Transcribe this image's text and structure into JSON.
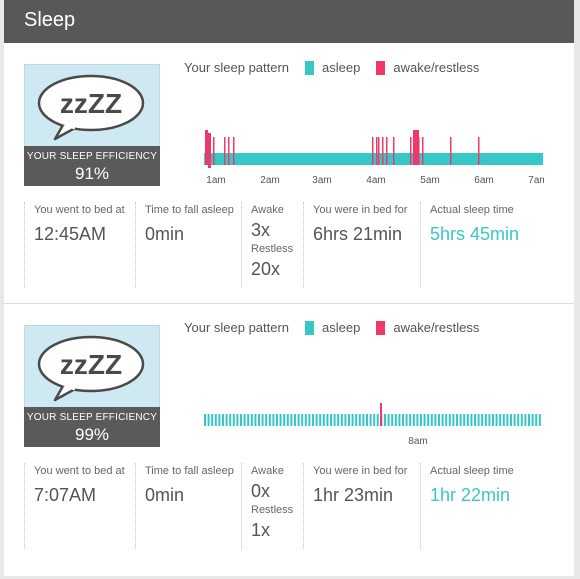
{
  "header": {
    "title": "Sleep"
  },
  "colors": {
    "asleep": "#36c8c8",
    "awake": "#f0386a",
    "header": "#585858",
    "card": "#cfe9f3"
  },
  "icon": "speech-bubble-zzz-icon",
  "nights": [
    {
      "bubble_text": "zzZZ",
      "efficiency_label": "YOUR SLEEP EFFICIENCY",
      "efficiency_value": "91%",
      "legend": {
        "title": "Your sleep pattern",
        "asleep": "asleep",
        "awake": "awake/restless"
      },
      "time_labels": [
        "1am",
        "2am",
        "3am",
        "4am",
        "5am",
        "6am",
        "7am"
      ],
      "stats": {
        "bed_label": "You went to bed at",
        "bed_value": "12:45AM",
        "fall_label": "Time to fall asleep",
        "fall_value": "0min",
        "awake_label": "Awake",
        "awake_value": "3x",
        "restless_label": "Restless",
        "restless_value": "20x",
        "inbed_label": "You were in bed for",
        "inbed_value": "6hrs 21min",
        "actual_label": "Actual sleep time",
        "actual_value": "5hrs 45min"
      }
    },
    {
      "bubble_text": "zzZZ",
      "efficiency_label": "YOUR SLEEP EFFICIENCY",
      "efficiency_value": "99%",
      "legend": {
        "title": "Your sleep pattern",
        "asleep": "asleep",
        "awake": "awake/restless"
      },
      "time_labels": [
        "8am"
      ],
      "stats": {
        "bed_label": "You went to bed at",
        "bed_value": "7:07AM",
        "fall_label": "Time to fall asleep",
        "fall_value": "0min",
        "awake_label": "Awake",
        "awake_value": "0x",
        "restless_label": "Restless",
        "restless_value": "1x",
        "inbed_label": "You were in bed for",
        "inbed_value": "1hr 23min",
        "actual_label": "Actual sleep time",
        "actual_value": "1hr 22min"
      }
    }
  ]
}
